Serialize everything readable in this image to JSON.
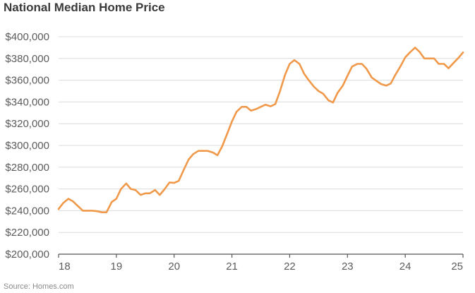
{
  "chart_data": {
    "type": "line",
    "title": "National Median Home Price",
    "source": "Source: Homes.com",
    "xlabel": "",
    "ylabel": "",
    "x_ticks": [
      "18",
      "19",
      "20",
      "21",
      "22",
      "23",
      "24",
      "25"
    ],
    "x_range": [
      18,
      25
    ],
    "y_ticks": [
      "$200,000",
      "$220,000",
      "$240,000",
      "$260,000",
      "$280,000",
      "$300,000",
      "$320,000",
      "$340,000",
      "$360,000",
      "$380,000",
      "$400,000"
    ],
    "ylim": [
      200000,
      400000
    ],
    "grid": true,
    "series": [
      {
        "color": "#F0994A",
        "x": [
          18.0,
          18.08,
          18.17,
          18.25,
          18.33,
          18.42,
          18.5,
          18.58,
          18.67,
          18.75,
          18.83,
          18.92,
          19.0,
          19.08,
          19.17,
          19.25,
          19.33,
          19.42,
          19.5,
          19.58,
          19.67,
          19.75,
          19.83,
          19.92,
          20.0,
          20.08,
          20.17,
          20.25,
          20.33,
          20.42,
          20.5,
          20.58,
          20.67,
          20.75,
          20.83,
          20.92,
          21.0,
          21.08,
          21.17,
          21.25,
          21.33,
          21.42,
          21.5,
          21.58,
          21.67,
          21.75,
          21.83,
          21.92,
          22.0,
          22.08,
          22.17,
          22.25,
          22.33,
          22.42,
          22.5,
          22.58,
          22.67,
          22.75,
          22.83,
          22.92,
          23.0,
          23.08,
          23.17,
          23.25,
          23.33,
          23.42,
          23.5,
          23.58,
          23.67,
          23.75,
          23.83,
          23.92,
          24.0,
          24.08,
          24.17,
          24.25,
          24.33,
          24.42,
          24.5,
          24.58,
          24.67,
          24.75,
          24.83,
          24.92,
          25.0
        ],
        "y": [
          241500,
          247000,
          251000,
          248500,
          244500,
          240000,
          240000,
          240000,
          239500,
          238500,
          238500,
          248000,
          251000,
          260000,
          265000,
          260000,
          259000,
          254500,
          256000,
          256000,
          259000,
          254500,
          259500,
          266000,
          265500,
          267500,
          278000,
          287000,
          292000,
          295000,
          295000,
          295000,
          293500,
          291000,
          299000,
          311000,
          322000,
          331000,
          335500,
          335500,
          332000,
          333500,
          335500,
          337500,
          336000,
          338000,
          349500,
          365000,
          375000,
          378500,
          375000,
          366000,
          360000,
          354000,
          350000,
          347500,
          341500,
          339500,
          348500,
          355000,
          364000,
          372500,
          375000,
          375000,
          370500,
          362500,
          359500,
          356500,
          355000,
          357000,
          365000,
          373000,
          381000,
          385500,
          390000,
          386000,
          380000,
          380000,
          380000,
          375000,
          375000,
          371000,
          375500,
          380500,
          385500
        ]
      }
    ]
  }
}
